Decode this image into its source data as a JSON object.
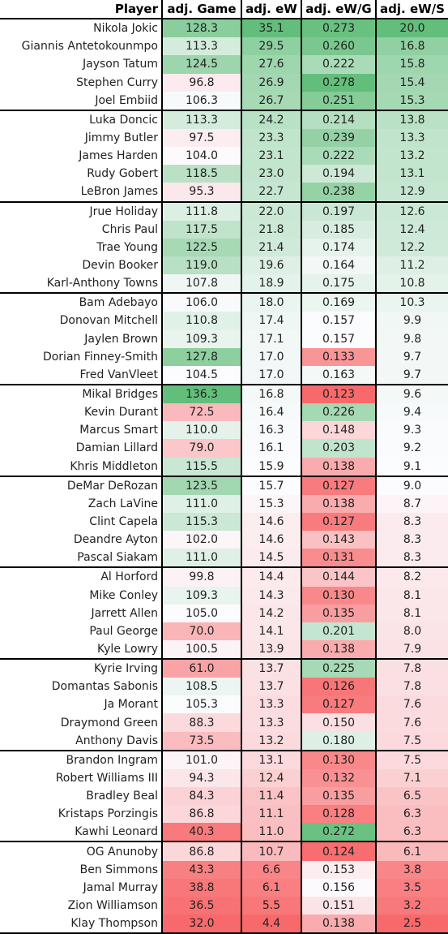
{
  "headers": [
    "Player",
    "adj. Game",
    "adj. eW",
    "adj. eW/G",
    "adj. eW/S"
  ],
  "rows": [
    [
      "Nikola Jokic",
      "128.3",
      "35.1",
      "0.273",
      "20.0"
    ],
    [
      "Giannis Antetokounmpo",
      "113.3",
      "29.5",
      "0.260",
      "16.8"
    ],
    [
      "Jayson Tatum",
      "124.5",
      "27.6",
      "0.222",
      "15.8"
    ],
    [
      "Stephen Curry",
      "96.8",
      "26.9",
      "0.278",
      "15.4"
    ],
    [
      "Joel Embiid",
      "106.3",
      "26.7",
      "0.251",
      "15.3"
    ],
    [
      "Luka Doncic",
      "113.3",
      "24.2",
      "0.214",
      "13.8"
    ],
    [
      "Jimmy Butler",
      "97.5",
      "23.3",
      "0.239",
      "13.3"
    ],
    [
      "James Harden",
      "104.0",
      "23.1",
      "0.222",
      "13.2"
    ],
    [
      "Rudy Gobert",
      "118.5",
      "23.0",
      "0.194",
      "13.1"
    ],
    [
      "LeBron James",
      "95.3",
      "22.7",
      "0.238",
      "12.9"
    ],
    [
      "Jrue Holiday",
      "111.8",
      "22.0",
      "0.197",
      "12.6"
    ],
    [
      "Chris Paul",
      "117.5",
      "21.8",
      "0.185",
      "12.4"
    ],
    [
      "Trae Young",
      "122.5",
      "21.4",
      "0.174",
      "12.2"
    ],
    [
      "Devin Booker",
      "119.0",
      "19.6",
      "0.164",
      "11.2"
    ],
    [
      "Karl-Anthony Towns",
      "107.8",
      "18.9",
      "0.175",
      "10.8"
    ],
    [
      "Bam Adebayo",
      "106.0",
      "18.0",
      "0.169",
      "10.3"
    ],
    [
      "Donovan Mitchell",
      "110.8",
      "17.4",
      "0.157",
      "9.9"
    ],
    [
      "Jaylen Brown",
      "109.3",
      "17.1",
      "0.157",
      "9.8"
    ],
    [
      "Dorian Finney-Smith",
      "127.8",
      "17.0",
      "0.133",
      "9.7"
    ],
    [
      "Fred VanVleet",
      "104.5",
      "17.0",
      "0.163",
      "9.7"
    ],
    [
      "Mikal Bridges",
      "136.3",
      "16.8",
      "0.123",
      "9.6"
    ],
    [
      "Kevin Durant",
      "72.5",
      "16.4",
      "0.226",
      "9.4"
    ],
    [
      "Marcus Smart",
      "110.0",
      "16.3",
      "0.148",
      "9.3"
    ],
    [
      "Damian Lillard",
      "79.0",
      "16.1",
      "0.203",
      "9.2"
    ],
    [
      "Khris Middleton",
      "115.5",
      "15.9",
      "0.138",
      "9.1"
    ],
    [
      "DeMar DeRozan",
      "123.5",
      "15.7",
      "0.127",
      "9.0"
    ],
    [
      "Zach LaVine",
      "111.0",
      "15.3",
      "0.138",
      "8.7"
    ],
    [
      "Clint Capela",
      "115.3",
      "14.6",
      "0.127",
      "8.3"
    ],
    [
      "Deandre Ayton",
      "102.0",
      "14.6",
      "0.143",
      "8.3"
    ],
    [
      "Pascal Siakam",
      "111.0",
      "14.5",
      "0.131",
      "8.3"
    ],
    [
      "Al Horford",
      "99.8",
      "14.4",
      "0.144",
      "8.2"
    ],
    [
      "Mike Conley",
      "109.3",
      "14.3",
      "0.130",
      "8.1"
    ],
    [
      "Jarrett Allen",
      "105.0",
      "14.2",
      "0.135",
      "8.1"
    ],
    [
      "Paul George",
      "70.0",
      "14.1",
      "0.201",
      "8.0"
    ],
    [
      "Kyle Lowry",
      "100.5",
      "13.9",
      "0.138",
      "7.9"
    ],
    [
      "Kyrie Irving",
      "61.0",
      "13.7",
      "0.225",
      "7.8"
    ],
    [
      "Domantas Sabonis",
      "108.5",
      "13.7",
      "0.126",
      "7.8"
    ],
    [
      "Ja Morant",
      "105.3",
      "13.3",
      "0.127",
      "7.6"
    ],
    [
      "Draymond Green",
      "88.3",
      "13.3",
      "0.150",
      "7.6"
    ],
    [
      "Anthony Davis",
      "73.5",
      "13.2",
      "0.180",
      "7.5"
    ],
    [
      "Brandon Ingram",
      "101.0",
      "13.1",
      "0.130",
      "7.5"
    ],
    [
      "Robert Williams III",
      "94.3",
      "12.4",
      "0.132",
      "7.1"
    ],
    [
      "Bradley Beal",
      "84.3",
      "11.4",
      "0.135",
      "6.5"
    ],
    [
      "Kristaps Porzingis",
      "86.8",
      "11.1",
      "0.128",
      "6.3"
    ],
    [
      "Kawhi Leonard",
      "40.3",
      "11.0",
      "0.272",
      "6.3"
    ],
    [
      "OG Anunoby",
      "86.8",
      "10.7",
      "0.124",
      "6.1"
    ],
    [
      "Ben Simmons",
      "43.3",
      "6.6",
      "0.153",
      "3.8"
    ],
    [
      "Jamal Murray",
      "38.8",
      "6.1",
      "0.156",
      "3.5"
    ],
    [
      "Zion Williamson",
      "36.5",
      "5.5",
      "0.151",
      "3.2"
    ],
    [
      "Klay Thompson",
      "32.0",
      "4.4",
      "0.138",
      "2.5"
    ]
  ],
  "colors": {
    "high": "#63be7b",
    "mid": "#fcfcff",
    "low": "#f8696b"
  },
  "group_size": 5
}
